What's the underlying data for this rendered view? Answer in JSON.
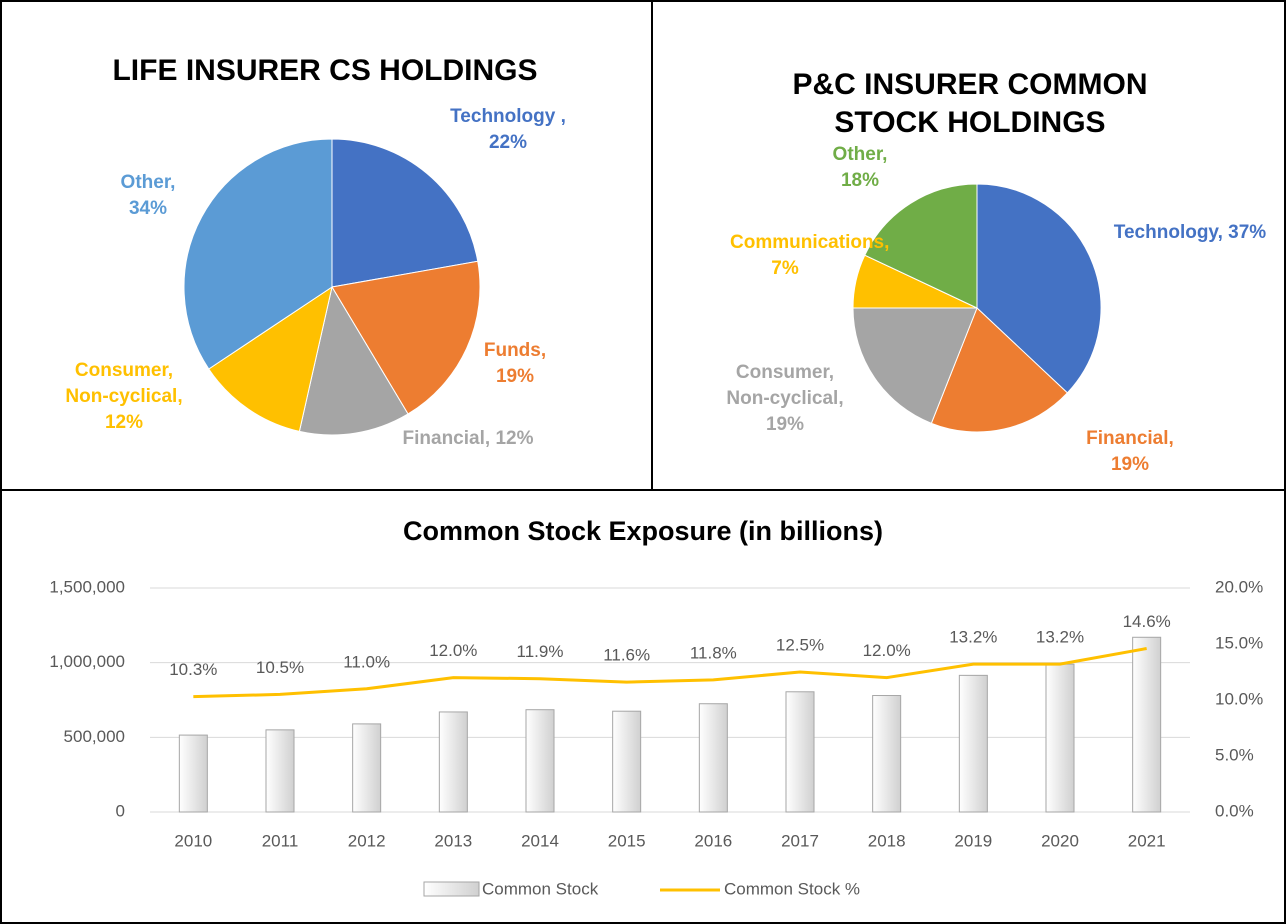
{
  "chart_data": [
    {
      "type": "pie",
      "title": "LIFE INSURER CS HOLDINGS",
      "categories": [
        "Technology",
        "Funds,",
        "Financial,",
        "Consumer, Non-cyclical,",
        "Other,"
      ],
      "values": [
        22,
        19,
        12,
        12,
        34
      ],
      "value_labels": [
        ", 22%",
        "19%",
        "12%",
        "12%",
        "34%"
      ],
      "colors": [
        "#4472c4",
        "#ed7d31",
        "#a5a5a5",
        "#ffc000",
        "#5b9bd5"
      ]
    },
    {
      "type": "pie",
      "title": "P&C INSURER COMMON STOCK HOLDINGS",
      "categories": [
        "Technology,",
        "Financial,",
        "Consumer, Non-cyclical,",
        "Communications,",
        "Other,"
      ],
      "values": [
        37,
        19,
        19,
        7,
        18
      ],
      "value_labels": [
        "37%",
        "19%",
        "19%",
        "7%",
        "18%"
      ],
      "colors": [
        "#4472c4",
        "#ed7d31",
        "#a5a5a5",
        "#ffc000",
        "#70ad47"
      ]
    },
    {
      "type": "bar",
      "title": "Common Stock Exposure (in billions)",
      "categories": [
        "2010",
        "2011",
        "2012",
        "2013",
        "2014",
        "2015",
        "2016",
        "2017",
        "2018",
        "2019",
        "2020",
        "2021"
      ],
      "series": [
        {
          "name": "Common Stock",
          "type": "bar",
          "color": "#d9d9d9",
          "values": [
            515000,
            550000,
            590000,
            670000,
            685000,
            675000,
            725000,
            805000,
            780000,
            915000,
            990000,
            1170000
          ]
        },
        {
          "name": "Common Stock %",
          "type": "line",
          "axis": "y2",
          "color": "#ffc000",
          "values": [
            10.3,
            10.5,
            11.0,
            12.0,
            11.9,
            11.6,
            11.8,
            12.5,
            12.0,
            13.2,
            13.2,
            14.6
          ],
          "value_labels": [
            "10.3%",
            "10.5%",
            "11.0%",
            "12.0%",
            "11.9%",
            "11.6%",
            "11.8%",
            "12.5%",
            "12.0%",
            "13.2%",
            "13.2%",
            "14.6%"
          ]
        }
      ],
      "ylim": [
        0,
        1500000
      ],
      "yticks": [
        0,
        {
          "value": 500000,
          "label": "500,000"
        },
        {
          "value": 1000000,
          "label": "1,000,000"
        },
        {
          "value": 1500000,
          "label": "1,500,000"
        }
      ],
      "y2lim": [
        0,
        20
      ],
      "y2ticks": [
        {
          "value": 0,
          "label": "0.0%"
        },
        {
          "value": 5,
          "label": "5.0%"
        },
        {
          "value": 10,
          "label": "10.0%"
        },
        {
          "value": 15,
          "label": "15.0%"
        },
        {
          "value": 20,
          "label": "20.0%"
        }
      ],
      "grid": true,
      "legend": "bottom"
    }
  ]
}
